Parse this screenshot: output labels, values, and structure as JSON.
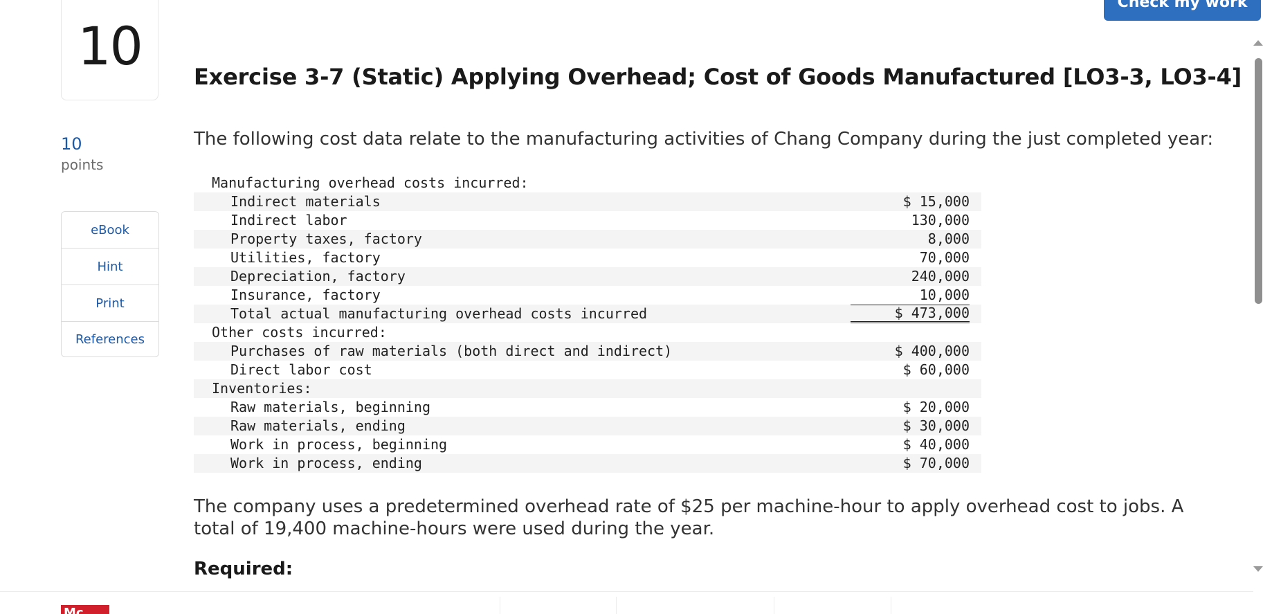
{
  "question": {
    "number": "10",
    "points_value": "10",
    "points_label": "points"
  },
  "tools": [
    "eBook",
    "Hint",
    "Print",
    "References"
  ],
  "check_button_label": "Check my work",
  "title": "Exercise 3-7 (Static) Applying Overhead; Cost of Goods Manufactured [LO3-3, LO3-4]",
  "intro": "The following cost data relate to the manufacturing activities of Chang Company during the just completed year:",
  "table": {
    "rows": [
      {
        "label": "Manufacturing overhead costs incurred:",
        "value": "",
        "indent": false
      },
      {
        "label": "Indirect materials",
        "value": "$ 15,000",
        "indent": true
      },
      {
        "label": "Indirect labor",
        "value": "130,000",
        "indent": true
      },
      {
        "label": "Property taxes, factory",
        "value": "8,000",
        "indent": true
      },
      {
        "label": "Utilities, factory",
        "value": "70,000",
        "indent": true
      },
      {
        "label": "Depreciation, factory",
        "value": "240,000",
        "indent": true
      },
      {
        "label": "Insurance, factory",
        "value": "10,000",
        "indent": true
      },
      {
        "label": "Total actual manufacturing overhead costs incurred",
        "value": "$ 473,000",
        "indent": true
      },
      {
        "label": "Other costs incurred:",
        "value": "",
        "indent": false
      },
      {
        "label": "Purchases of raw materials (both direct and indirect)",
        "value": "$ 400,000",
        "indent": true
      },
      {
        "label": "Direct labor cost",
        "value": "$ 60,000",
        "indent": true
      },
      {
        "label": "Inventories:",
        "value": "",
        "indent": false
      },
      {
        "label": "Raw materials, beginning",
        "value": "$ 20,000",
        "indent": true
      },
      {
        "label": "Raw materials, ending",
        "value": "$ 30,000",
        "indent": true
      },
      {
        "label": "Work in process, beginning",
        "value": "$ 40,000",
        "indent": true
      },
      {
        "label": "Work in process, ending",
        "value": "$ 70,000",
        "indent": true
      }
    ]
  },
  "paragraph": "The company uses a predetermined overhead rate of $25 per machine-hour to apply overhead cost to jobs. A total of 19,400 machine-hours were used during the year.",
  "required_label": "Required:",
  "logo_text": "Mc"
}
